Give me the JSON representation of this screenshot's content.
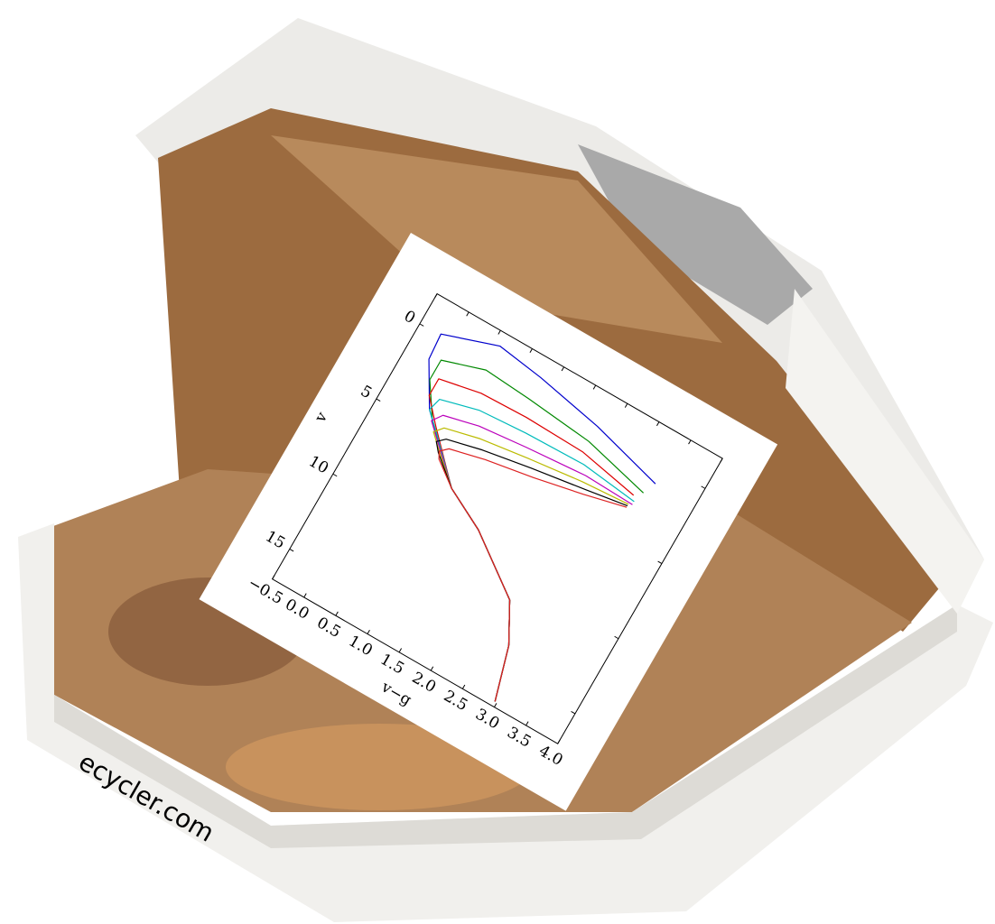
{
  "watermark": "ecycler.com",
  "chart_data": {
    "type": "line",
    "xlabel": "v−g",
    "ylabel": "v",
    "xlim": [
      -0.5,
      4.0
    ],
    "ylim": [
      -2,
      17
    ],
    "y_inverted": true,
    "xticks": [
      {
        "value": -0.5,
        "label": "−0.5"
      },
      {
        "value": 0,
        "label": "0.0"
      },
      0.5,
      {
        "value": 1,
        "label": "1.0"
      },
      1.5,
      {
        "value": 2,
        "label": "2.0"
      },
      2.5,
      {
        "value": 3,
        "label": "3.0"
      },
      3.5,
      {
        "value": 4,
        "label": "4.0"
      }
    ],
    "yticks": [
      0,
      5,
      10,
      15
    ],
    "series": [
      {
        "color": "#0000cc",
        "x": [
          2.97,
          2.75,
          2.45,
          1.6,
          1.0,
          0.2,
          -0.15,
          -0.18,
          0.6,
          1.3,
          2.3,
          3.38
        ],
        "values": [
          16.7,
          13.5,
          11.2,
          8.6,
          7.3,
          4.0,
          1.5,
          -0.1,
          -1.2,
          -0.8,
          0.0,
          1.2
        ]
      },
      {
        "color": "#008800",
        "x": [
          2.97,
          2.75,
          2.45,
          1.6,
          1.0,
          0.3,
          0.0,
          0.0,
          0.6,
          1.3,
          2.3,
          3.3
        ],
        "values": [
          16.7,
          13.5,
          11.2,
          8.6,
          7.3,
          4.4,
          2.5,
          1.2,
          0.4,
          0.6,
          1.0,
          2.0
        ]
      },
      {
        "color": "#dd0000",
        "x": [
          2.97,
          2.75,
          2.45,
          1.6,
          1.0,
          0.4,
          0.1,
          0.1,
          0.7,
          1.4,
          2.3,
          3.2
        ],
        "values": [
          16.7,
          13.5,
          11.2,
          8.6,
          7.3,
          4.7,
          3.3,
          2.2,
          1.7,
          1.6,
          1.7,
          2.4
        ]
      },
      {
        "color": "#00bbbb",
        "x": [
          2.97,
          2.75,
          2.45,
          1.6,
          1.0,
          0.45,
          0.2,
          0.25,
          0.8,
          1.5,
          2.4,
          3.25
        ],
        "values": [
          16.7,
          13.5,
          11.2,
          8.6,
          7.3,
          5.0,
          4.0,
          3.2,
          2.6,
          2.4,
          2.3,
          2.7
        ]
      },
      {
        "color": "#bb00bb",
        "x": [
          2.97,
          2.75,
          2.45,
          1.6,
          1.0,
          0.5,
          0.3,
          0.4,
          0.9,
          1.6,
          2.5,
          3.25
        ],
        "values": [
          16.7,
          13.5,
          11.2,
          8.6,
          7.3,
          5.3,
          4.5,
          3.9,
          3.4,
          3.1,
          2.8,
          2.9
        ]
      },
      {
        "color": "#bbbb00",
        "x": [
          2.97,
          2.75,
          2.45,
          1.6,
          1.0,
          0.55,
          0.4,
          0.5,
          1.0,
          1.7,
          2.5,
          3.2
        ],
        "values": [
          16.7,
          13.5,
          11.2,
          8.6,
          7.3,
          5.6,
          5.0,
          4.5,
          4.0,
          3.6,
          3.2,
          3.0
        ]
      },
      {
        "color": "#000000",
        "x": [
          2.97,
          2.75,
          2.45,
          1.6,
          1.0,
          0.6,
          0.5,
          0.6,
          1.1,
          1.8,
          2.6,
          3.2
        ],
        "values": [
          16.7,
          13.5,
          11.2,
          8.6,
          7.3,
          5.9,
          5.4,
          5.0,
          4.5,
          4.0,
          3.5,
          3.1
        ]
      },
      {
        "color": "#dd2222",
        "x": [
          2.97,
          2.75,
          2.45,
          1.6,
          1.0,
          0.65,
          0.6,
          0.7,
          1.2,
          1.9,
          2.6,
          3.2
        ],
        "values": [
          16.7,
          13.5,
          11.2,
          8.6,
          7.3,
          6.2,
          5.8,
          5.4,
          4.9,
          4.4,
          3.8,
          3.2
        ]
      }
    ]
  }
}
